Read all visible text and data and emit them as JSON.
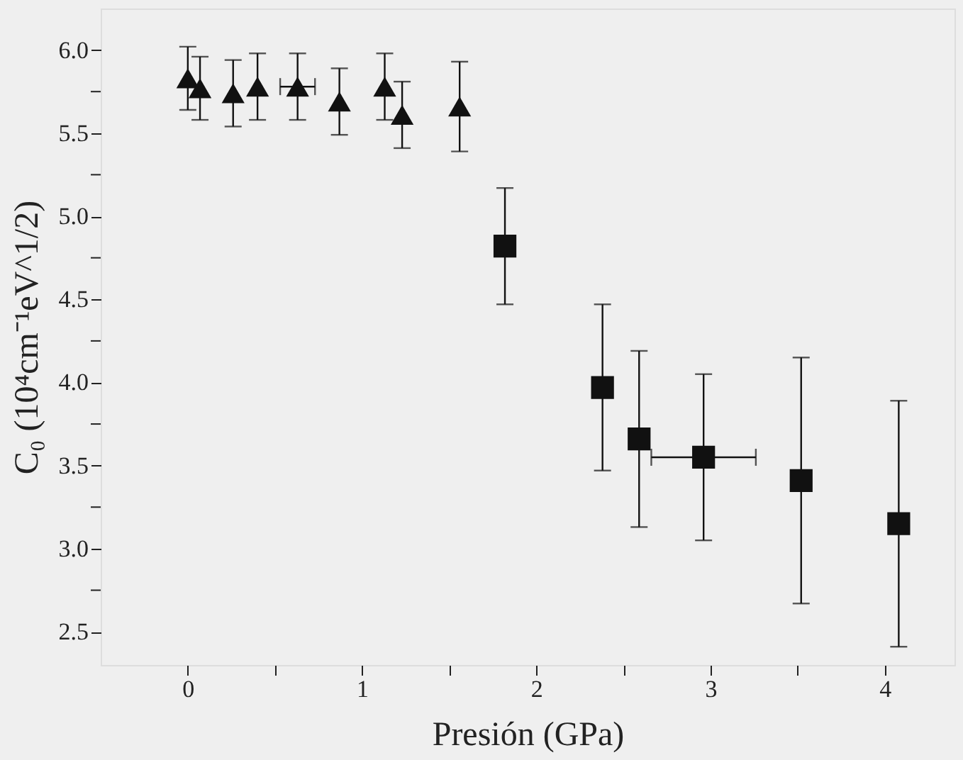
{
  "chart_data": {
    "type": "scatter",
    "xlabel": "Presión (GPa)",
    "ylabel": "C₀ (10⁴cm⁻¹eV^1/2)",
    "xlim": [
      -0.5,
      4.4
    ],
    "ylim": [
      2.3,
      6.25
    ],
    "xticks": [
      0,
      {
        "value": 0.5,
        "label": null
      },
      1,
      {
        "value": 1.5,
        "label": null
      },
      2,
      {
        "value": 2.5,
        "label": null
      },
      3,
      {
        "value": 3.5,
        "label": null
      },
      4
    ],
    "yticks": [
      {
        "value": 2.5,
        "label": "2.5"
      },
      {
        "value": 2.75,
        "label": null
      },
      {
        "value": 3.0,
        "label": "3.0"
      },
      {
        "value": 3.25,
        "label": null
      },
      {
        "value": 3.5,
        "label": "3.5"
      },
      {
        "value": 3.75,
        "label": null
      },
      {
        "value": 4.0,
        "label": "4.0"
      },
      {
        "value": 4.25,
        "label": null
      },
      {
        "value": 4.5,
        "label": "4.5"
      },
      {
        "value": 4.75,
        "label": null
      },
      {
        "value": 5.0,
        "label": "5.0"
      },
      {
        "value": 5.25,
        "label": null
      },
      {
        "value": 5.5,
        "label": "5.5"
      },
      {
        "value": 5.75,
        "label": null
      },
      {
        "value": 6.0,
        "label": "6.0"
      }
    ],
    "series": [
      {
        "marker": "triangle",
        "color": "#111111",
        "x": [
          0.0,
          0.07,
          0.26,
          0.4,
          0.63,
          0.87,
          1.13,
          1.23,
          1.56
        ],
        "values": [
          5.83,
          5.77,
          5.74,
          5.78,
          5.78,
          5.69,
          5.78,
          5.61,
          5.66
        ],
        "errors": [
          0.19,
          0.19,
          0.2,
          0.2,
          0.2,
          0.2,
          0.2,
          0.2,
          0.27
        ],
        "xerrors": [
          null,
          null,
          null,
          null,
          0.1,
          null,
          null,
          null,
          null
        ]
      },
      {
        "marker": "square",
        "color": "#111111",
        "x": [
          1.82,
          2.38,
          2.59,
          2.96,
          3.52,
          4.08
        ],
        "values": [
          4.82,
          3.97,
          3.66,
          3.55,
          3.41,
          3.15
        ],
        "errors": [
          0.35,
          0.5,
          0.53,
          0.5,
          0.74,
          0.74
        ],
        "xerrors": [
          null,
          null,
          null,
          0.3,
          null,
          null
        ]
      }
    ]
  }
}
